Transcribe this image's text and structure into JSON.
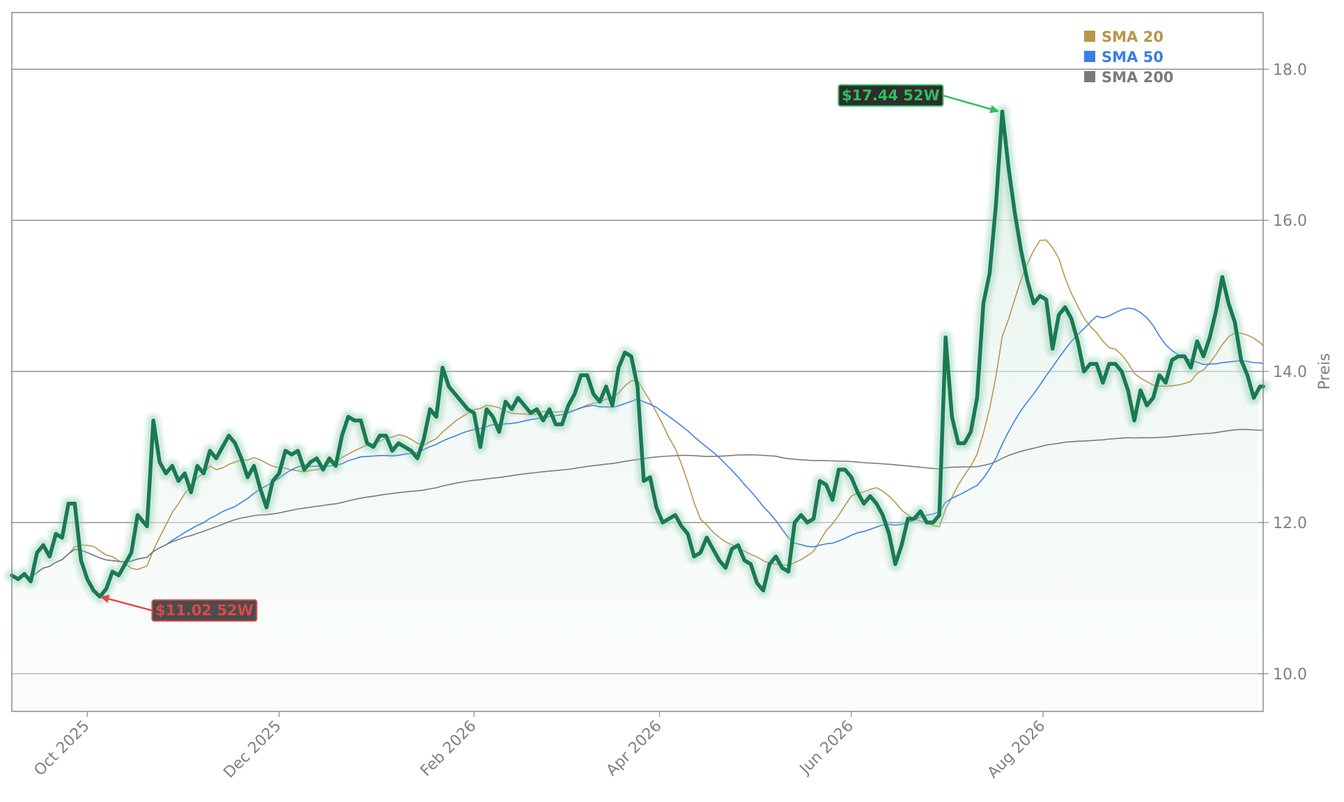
{
  "chart_data": {
    "type": "line",
    "title": "",
    "xlabel": "",
    "ylabel": "Preis",
    "x_range": [
      "2025-09-07",
      "2026-10-10"
    ],
    "ylim": [
      9.5,
      18.75
    ],
    "yticks": [
      10.0,
      12.0,
      14.0,
      16.0,
      18.0
    ],
    "ytick_labels": [
      "10.0",
      "12.0",
      "14.0",
      "16.0",
      "18.0"
    ],
    "xticks": [
      "2025-10-01",
      "2025-12-01",
      "2026-02-01",
      "2026-04-01",
      "2026-06-01",
      "2026-08-01"
    ],
    "xtick_labels": [
      "Oct 2025",
      "Dec 2025",
      "Feb 2026",
      "Apr 2026",
      "Jun 2026",
      "Aug 2026"
    ],
    "grid": "horizontal",
    "legend_position": "top-right",
    "colors": {
      "price": "#1a7a52",
      "glow": "#8ccfb0",
      "fill": "#dceee6",
      "sma20": "#b8964a",
      "sma50": "#3a7ee8",
      "sma200": "#7a7a7a",
      "high": "#2dbe5c",
      "low": "#e04848"
    },
    "series": [
      {
        "name": "Price",
        "points": [
          [
            "2025-09-07",
            11.3
          ],
          [
            "2025-09-09",
            11.25
          ],
          [
            "2025-09-11",
            11.32
          ],
          [
            "2025-09-13",
            11.22
          ],
          [
            "2025-09-15",
            11.6
          ],
          [
            "2025-09-17",
            11.7
          ],
          [
            "2025-09-19",
            11.55
          ],
          [
            "2025-09-21",
            11.85
          ],
          [
            "2025-09-23",
            11.8
          ],
          [
            "2025-09-25",
            12.25
          ],
          [
            "2025-09-27",
            12.25
          ],
          [
            "2025-09-29",
            11.5
          ],
          [
            "2025-10-01",
            11.25
          ],
          [
            "2025-10-03",
            11.1
          ],
          [
            "2025-10-05",
            11.02
          ],
          [
            "2025-10-07",
            11.12
          ],
          [
            "2025-10-09",
            11.35
          ],
          [
            "2025-10-11",
            11.3
          ],
          [
            "2025-10-13",
            11.45
          ],
          [
            "2025-10-15",
            11.6
          ],
          [
            "2025-10-17",
            12.1
          ],
          [
            "2025-10-20",
            11.95
          ],
          [
            "2025-10-22",
            13.35
          ],
          [
            "2025-10-24",
            12.8
          ],
          [
            "2025-10-26",
            12.65
          ],
          [
            "2025-10-28",
            12.75
          ],
          [
            "2025-10-30",
            12.55
          ],
          [
            "2025-11-01",
            12.65
          ],
          [
            "2025-11-03",
            12.4
          ],
          [
            "2025-11-05",
            12.75
          ],
          [
            "2025-11-07",
            12.65
          ],
          [
            "2025-11-09",
            12.95
          ],
          [
            "2025-11-11",
            12.85
          ],
          [
            "2025-11-13",
            13.0
          ],
          [
            "2025-11-15",
            13.15
          ],
          [
            "2025-11-17",
            13.05
          ],
          [
            "2025-11-19",
            12.85
          ],
          [
            "2025-11-21",
            12.6
          ],
          [
            "2025-11-23",
            12.75
          ],
          [
            "2025-11-25",
            12.45
          ],
          [
            "2025-11-27",
            12.2
          ],
          [
            "2025-11-29",
            12.55
          ],
          [
            "2025-12-01",
            12.65
          ],
          [
            "2025-12-03",
            12.95
          ],
          [
            "2025-12-05",
            12.9
          ],
          [
            "2025-12-07",
            12.95
          ],
          [
            "2025-12-09",
            12.7
          ],
          [
            "2025-12-11",
            12.8
          ],
          [
            "2025-12-13",
            12.85
          ],
          [
            "2025-12-15",
            12.7
          ],
          [
            "2025-12-17",
            12.85
          ],
          [
            "2025-12-19",
            12.75
          ],
          [
            "2025-12-21",
            13.15
          ],
          [
            "2025-12-23",
            13.4
          ],
          [
            "2025-12-25",
            13.35
          ],
          [
            "2025-12-27",
            13.35
          ],
          [
            "2025-12-29",
            13.05
          ],
          [
            "2025-12-31",
            13.0
          ],
          [
            "2026-01-02",
            13.15
          ],
          [
            "2026-01-04",
            13.15
          ],
          [
            "2026-01-06",
            12.95
          ],
          [
            "2026-01-08",
            13.05
          ],
          [
            "2026-01-10",
            13.0
          ],
          [
            "2026-01-12",
            12.95
          ],
          [
            "2026-01-14",
            12.85
          ],
          [
            "2026-01-16",
            13.1
          ],
          [
            "2026-01-18",
            13.5
          ],
          [
            "2026-01-20",
            13.4
          ],
          [
            "2026-01-22",
            14.05
          ],
          [
            "2026-01-24",
            13.8
          ],
          [
            "2026-01-26",
            13.7
          ],
          [
            "2026-01-28",
            13.6
          ],
          [
            "2026-01-30",
            13.5
          ],
          [
            "2026-02-01",
            13.45
          ],
          [
            "2026-02-03",
            13.0
          ],
          [
            "2026-02-05",
            13.5
          ],
          [
            "2026-02-07",
            13.4
          ],
          [
            "2026-02-09",
            13.2
          ],
          [
            "2026-02-11",
            13.6
          ],
          [
            "2026-02-13",
            13.5
          ],
          [
            "2026-02-15",
            13.65
          ],
          [
            "2026-02-17",
            13.55
          ],
          [
            "2026-02-19",
            13.45
          ],
          [
            "2026-02-21",
            13.5
          ],
          [
            "2026-02-23",
            13.35
          ],
          [
            "2026-02-25",
            13.5
          ],
          [
            "2026-02-27",
            13.3
          ],
          [
            "2026-03-01",
            13.3
          ],
          [
            "2026-03-03",
            13.55
          ],
          [
            "2026-03-05",
            13.7
          ],
          [
            "2026-03-07",
            13.95
          ],
          [
            "2026-03-09",
            13.95
          ],
          [
            "2026-03-11",
            13.7
          ],
          [
            "2026-03-13",
            13.6
          ],
          [
            "2026-03-15",
            13.8
          ],
          [
            "2026-03-17",
            13.55
          ],
          [
            "2026-03-19",
            14.05
          ],
          [
            "2026-03-21",
            14.25
          ],
          [
            "2026-03-23",
            14.2
          ],
          [
            "2026-03-25",
            13.8
          ],
          [
            "2026-03-27",
            12.55
          ],
          [
            "2026-03-29",
            12.6
          ],
          [
            "2026-03-31",
            12.2
          ],
          [
            "2026-04-02",
            12.0
          ],
          [
            "2026-04-04",
            12.05
          ],
          [
            "2026-04-06",
            12.1
          ],
          [
            "2026-04-08",
            11.95
          ],
          [
            "2026-04-10",
            11.85
          ],
          [
            "2026-04-12",
            11.55
          ],
          [
            "2026-04-14",
            11.6
          ],
          [
            "2026-04-16",
            11.8
          ],
          [
            "2026-04-18",
            11.65
          ],
          [
            "2026-04-20",
            11.5
          ],
          [
            "2026-04-22",
            11.4
          ],
          [
            "2026-04-24",
            11.65
          ],
          [
            "2026-04-26",
            11.7
          ],
          [
            "2026-04-28",
            11.5
          ],
          [
            "2026-04-30",
            11.45
          ],
          [
            "2026-05-02",
            11.2
          ],
          [
            "2026-05-04",
            11.1
          ],
          [
            "2026-05-06",
            11.45
          ],
          [
            "2026-05-08",
            11.55
          ],
          [
            "2026-05-10",
            11.4
          ],
          [
            "2026-05-12",
            11.35
          ],
          [
            "2026-05-14",
            12.0
          ],
          [
            "2026-05-16",
            12.1
          ],
          [
            "2026-05-18",
            12.0
          ],
          [
            "2026-05-20",
            12.05
          ],
          [
            "2026-05-22",
            12.55
          ],
          [
            "2026-05-24",
            12.5
          ],
          [
            "2026-05-26",
            12.3
          ],
          [
            "2026-05-28",
            12.7
          ],
          [
            "2026-05-30",
            12.7
          ],
          [
            "2026-06-01",
            12.6
          ],
          [
            "2026-06-03",
            12.4
          ],
          [
            "2026-06-05",
            12.25
          ],
          [
            "2026-06-07",
            12.35
          ],
          [
            "2026-06-09",
            12.25
          ],
          [
            "2026-06-11",
            12.1
          ],
          [
            "2026-06-13",
            11.85
          ],
          [
            "2026-06-15",
            11.45
          ],
          [
            "2026-06-17",
            11.7
          ],
          [
            "2026-06-19",
            12.05
          ],
          [
            "2026-06-21",
            12.05
          ],
          [
            "2026-06-23",
            12.15
          ],
          [
            "2026-06-25",
            12.0
          ],
          [
            "2026-06-27",
            12.0
          ],
          [
            "2026-06-29",
            12.1
          ],
          [
            "2026-07-01",
            14.45
          ],
          [
            "2026-07-03",
            13.4
          ],
          [
            "2026-07-05",
            13.05
          ],
          [
            "2026-07-07",
            13.05
          ],
          [
            "2026-07-09",
            13.2
          ],
          [
            "2026-07-11",
            13.65
          ],
          [
            "2026-07-13",
            14.9
          ],
          [
            "2026-07-15",
            15.3
          ],
          [
            "2026-07-17",
            16.2
          ],
          [
            "2026-07-19",
            17.44
          ],
          [
            "2026-07-21",
            16.7
          ],
          [
            "2026-07-23",
            16.1
          ],
          [
            "2026-07-25",
            15.6
          ],
          [
            "2026-07-27",
            15.2
          ],
          [
            "2026-07-29",
            14.9
          ],
          [
            "2026-07-31",
            15.0
          ],
          [
            "2026-08-02",
            14.95
          ],
          [
            "2026-08-04",
            14.3
          ],
          [
            "2026-08-06",
            14.75
          ],
          [
            "2026-08-08",
            14.85
          ],
          [
            "2026-08-10",
            14.7
          ],
          [
            "2026-08-12",
            14.4
          ],
          [
            "2026-08-14",
            14.0
          ],
          [
            "2026-08-16",
            14.1
          ],
          [
            "2026-08-18",
            14.1
          ],
          [
            "2026-08-20",
            13.85
          ],
          [
            "2026-08-22",
            14.1
          ],
          [
            "2026-08-24",
            14.1
          ],
          [
            "2026-08-26",
            14.0
          ],
          [
            "2026-08-28",
            13.75
          ],
          [
            "2026-08-30",
            13.35
          ],
          [
            "2026-09-01",
            13.75
          ],
          [
            "2026-09-03",
            13.55
          ],
          [
            "2026-09-05",
            13.65
          ],
          [
            "2026-09-07",
            13.95
          ],
          [
            "2026-09-09",
            13.85
          ],
          [
            "2026-09-11",
            14.15
          ],
          [
            "2026-09-13",
            14.2
          ],
          [
            "2026-09-15",
            14.2
          ],
          [
            "2026-09-17",
            14.05
          ],
          [
            "2026-09-19",
            14.4
          ],
          [
            "2026-09-21",
            14.2
          ],
          [
            "2026-09-23",
            14.45
          ],
          [
            "2026-09-25",
            14.8
          ],
          [
            "2026-09-27",
            15.25
          ],
          [
            "2026-09-29",
            14.9
          ],
          [
            "2026-10-01",
            14.65
          ],
          [
            "2026-10-03",
            14.15
          ],
          [
            "2026-10-05",
            13.95
          ],
          [
            "2026-10-07",
            13.65
          ],
          [
            "2026-10-09",
            13.8
          ],
          [
            "2026-10-10",
            13.8
          ]
        ]
      }
    ],
    "sma": [
      {
        "name": "SMA 20",
        "points": []
      },
      {
        "name": "SMA 50",
        "points": []
      },
      {
        "name": "SMA 200",
        "points": []
      }
    ],
    "annotations": [
      {
        "label": "$17.44 52W",
        "x": "2026-07-19",
        "y": 17.44,
        "kind": "high"
      },
      {
        "label": "$11.02 52W",
        "x": "2025-10-05",
        "y": 11.02,
        "kind": "low"
      }
    ]
  }
}
